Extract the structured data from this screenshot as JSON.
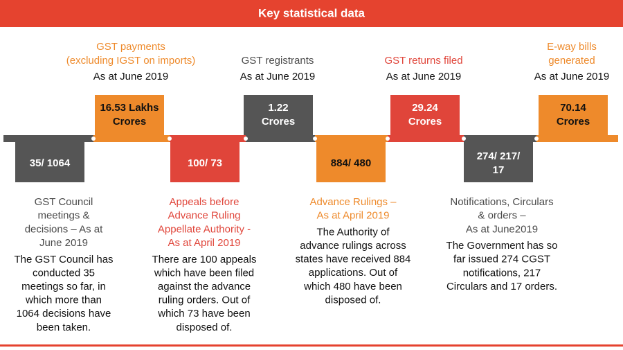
{
  "header": {
    "title": "Key statistical data"
  },
  "top_items": [
    {
      "label": [
        "GST payments",
        "(excluding IGST on imports)"
      ],
      "date": "As at June 2019",
      "value": [
        "16.53 Lakhs",
        "Crores"
      ]
    },
    {
      "label": [
        "GST registrants"
      ],
      "date": "As at June 2019",
      "value": [
        "1.22",
        "Crores"
      ]
    },
    {
      "label": [
        "GST returns filed"
      ],
      "date": "As at June 2019",
      "value": [
        "29.24",
        "Crores"
      ]
    },
    {
      "label": [
        "E-way bills",
        "generated"
      ],
      "date": "As at June 2019",
      "value": [
        "70.14",
        "Crores"
      ]
    }
  ],
  "bottom_items": [
    {
      "value": [
        "35/ 1064"
      ],
      "heading": [
        "GST Council",
        "meetings &",
        "decisions – As at",
        "June 2019"
      ],
      "body": [
        "The GST Council has",
        "conducted 35",
        "meetings so far, in",
        "which more than",
        "1064 decisions have",
        "been taken."
      ]
    },
    {
      "value": [
        "100/ 73"
      ],
      "heading": [
        "Appeals before",
        "Advance Ruling",
        "Appellate Authority -",
        "As at April 2019"
      ],
      "body": [
        "There are 100 appeals",
        "which have been filed",
        "against the advance",
        "ruling orders. Out of",
        "which 73 have been",
        "disposed of."
      ]
    },
    {
      "value": [
        "884/ 480"
      ],
      "heading": [
        "Advance Rulings –",
        "As at April 2019"
      ],
      "body": [
        "The Authority of",
        "advance rulings across",
        "states have received 884",
        "applications. Out of",
        "which 480 have been",
        "disposed of."
      ]
    },
    {
      "value": [
        "274/ 217/",
        "17"
      ],
      "heading": [
        "Notifications, Circulars",
        "& orders –",
        "As at June2019"
      ],
      "body": [
        "The Government has so",
        "far issued 274 CGST",
        "notifications, 217",
        "Circulars and 17 orders."
      ]
    }
  ]
}
